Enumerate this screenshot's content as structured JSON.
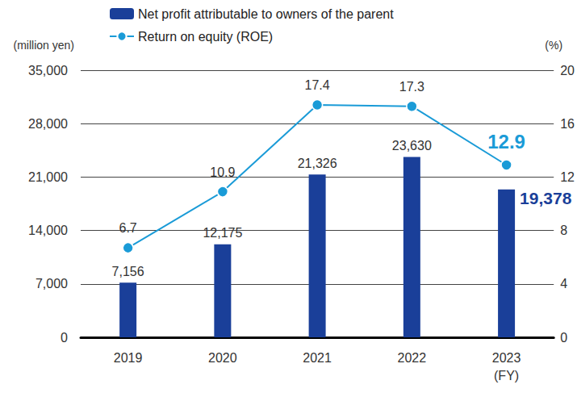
{
  "chart_data": {
    "type": "bar",
    "categories": [
      "2019",
      "2020",
      "2021",
      "2022",
      "2023"
    ],
    "x_label": "(FY)",
    "y_label": "(million yen)",
    "y2_label": "(%)",
    "ylim": [
      0,
      35000
    ],
    "yticks": [
      0,
      {
        "value": 7000,
        "label": "7,000"
      },
      {
        "value": 14000,
        "label": "14,000"
      },
      {
        "value": 21000,
        "label": "21,000"
      },
      {
        "value": 28000,
        "label": "28,000"
      },
      {
        "value": 35000,
        "label": "35,000"
      }
    ],
    "y2lim": [
      0,
      20
    ],
    "y2ticks": [
      0,
      4,
      8,
      12,
      16,
      20
    ],
    "grid": true,
    "legend": "top-left",
    "series": [
      {
        "name": "Net profit attributable to owners of the parent",
        "type": "bar",
        "color": "#1a3f99",
        "values": [
          7156,
          12175,
          21326,
          23630,
          19378
        ],
        "value_labels": [
          "7,156",
          "12,175",
          "21,326",
          "23,630",
          "19,378"
        ],
        "data_labels": true
      },
      {
        "name": "Return on equity (ROE)",
        "type": "line",
        "axis": "y2",
        "color": "#1a9bd7",
        "marker": "circle",
        "values": [
          6.7,
          10.9,
          17.4,
          17.3,
          12.9
        ],
        "data_labels": true
      }
    ]
  }
}
